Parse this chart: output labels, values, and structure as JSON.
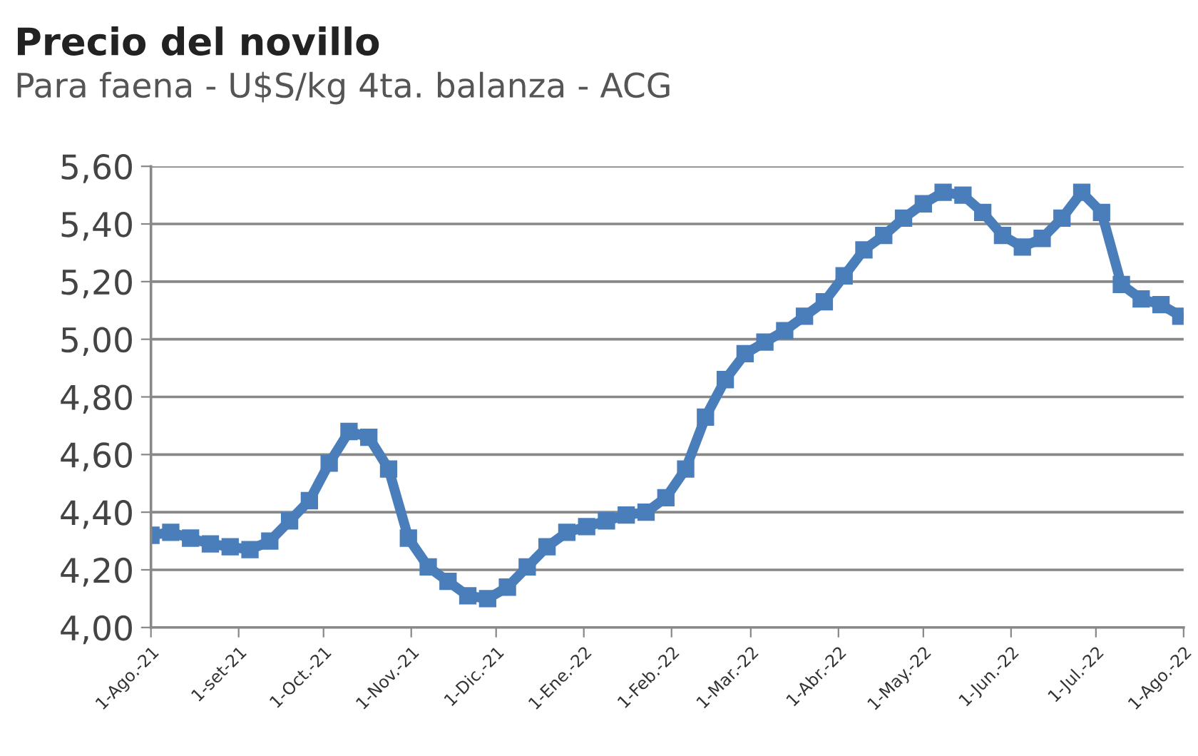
{
  "chart_data": {
    "type": "line",
    "title": "Precio del novillo",
    "subtitle": "Para faena - U$S/kg 4ta. balanza - ACG",
    "x": [
      "2021-08-01",
      "2021-08-08",
      "2021-08-15",
      "2021-08-22",
      "2021-08-29",
      "2021-09-05",
      "2021-09-12",
      "2021-09-19",
      "2021-09-26",
      "2021-10-03",
      "2021-10-10",
      "2021-10-17",
      "2021-10-24",
      "2021-10-31",
      "2021-11-07",
      "2021-11-14",
      "2021-11-21",
      "2021-11-28",
      "2021-12-05",
      "2021-12-12",
      "2021-12-19",
      "2021-12-26",
      "2022-01-02",
      "2022-01-09",
      "2022-01-16",
      "2022-01-23",
      "2022-01-30",
      "2022-02-06",
      "2022-02-13",
      "2022-02-20",
      "2022-02-27",
      "2022-03-06",
      "2022-03-13",
      "2022-03-20",
      "2022-03-27",
      "2022-04-03",
      "2022-04-10",
      "2022-04-17",
      "2022-04-24",
      "2022-05-01",
      "2022-05-08",
      "2022-05-15",
      "2022-05-22",
      "2022-05-29",
      "2022-06-05",
      "2022-06-12",
      "2022-06-19",
      "2022-06-26",
      "2022-07-03",
      "2022-07-10",
      "2022-07-17",
      "2022-07-24",
      "2022-07-31"
    ],
    "series": [
      {
        "color": "#4a7ebb",
        "values": [
          4.32,
          4.33,
          4.31,
          4.29,
          4.28,
          4.27,
          4.3,
          4.37,
          4.44,
          4.57,
          4.68,
          4.66,
          4.55,
          4.31,
          4.21,
          4.16,
          4.11,
          4.1,
          4.14,
          4.21,
          4.28,
          4.33,
          4.35,
          4.37,
          4.39,
          4.4,
          4.45,
          4.55,
          4.73,
          4.86,
          4.95,
          4.99,
          5.03,
          5.08,
          5.13,
          5.22,
          5.31,
          5.36,
          5.42,
          5.47,
          5.51,
          5.5,
          5.44,
          5.36,
          5.32,
          5.35,
          5.42,
          5.51,
          5.44,
          5.19,
          5.14,
          5.12,
          5.08
        ]
      }
    ],
    "xlim": [
      "2021-08-01",
      "2022-08-01"
    ],
    "xticks": [
      {
        "value": "2021-08-01",
        "label": "1-Ago.-21"
      },
      {
        "value": "2021-09-01",
        "label": "1-set-21"
      },
      {
        "value": "2021-10-01",
        "label": "1-Oct.-21"
      },
      {
        "value": "2021-11-01",
        "label": "1-Nov.-21"
      },
      {
        "value": "2021-12-01",
        "label": "1-Dic.-21"
      },
      {
        "value": "2022-01-01",
        "label": "1-Ene.-22"
      },
      {
        "value": "2022-02-01",
        "label": "1-Feb.-22"
      },
      {
        "value": "2022-03-01",
        "label": "1-Mar.-22"
      },
      {
        "value": "2022-04-01",
        "label": "1-Abr.-22"
      },
      {
        "value": "2022-05-01",
        "label": "1-May.-22"
      },
      {
        "value": "2022-06-01",
        "label": "1-Jun.-22"
      },
      {
        "value": "2022-07-01",
        "label": "1-Jul.-22"
      },
      {
        "value": "2022-08-01",
        "label": "1-Ago.-22"
      }
    ],
    "ylim": [
      4.0,
      5.6
    ],
    "yticks": [
      {
        "value": 4.0,
        "label": "4,00"
      },
      {
        "value": 4.2,
        "label": "4,20"
      },
      {
        "value": 4.4,
        "label": "4,40"
      },
      {
        "value": 4.6,
        "label": "4,60"
      },
      {
        "value": 4.8,
        "label": "4,80"
      },
      {
        "value": 5.0,
        "label": "5,00"
      },
      {
        "value": 5.2,
        "label": "5,20"
      },
      {
        "value": 5.4,
        "label": "5,40"
      },
      {
        "value": 5.6,
        "label": "5,60"
      }
    ],
    "grid": "y",
    "marker": "square",
    "line_style": "solid"
  }
}
